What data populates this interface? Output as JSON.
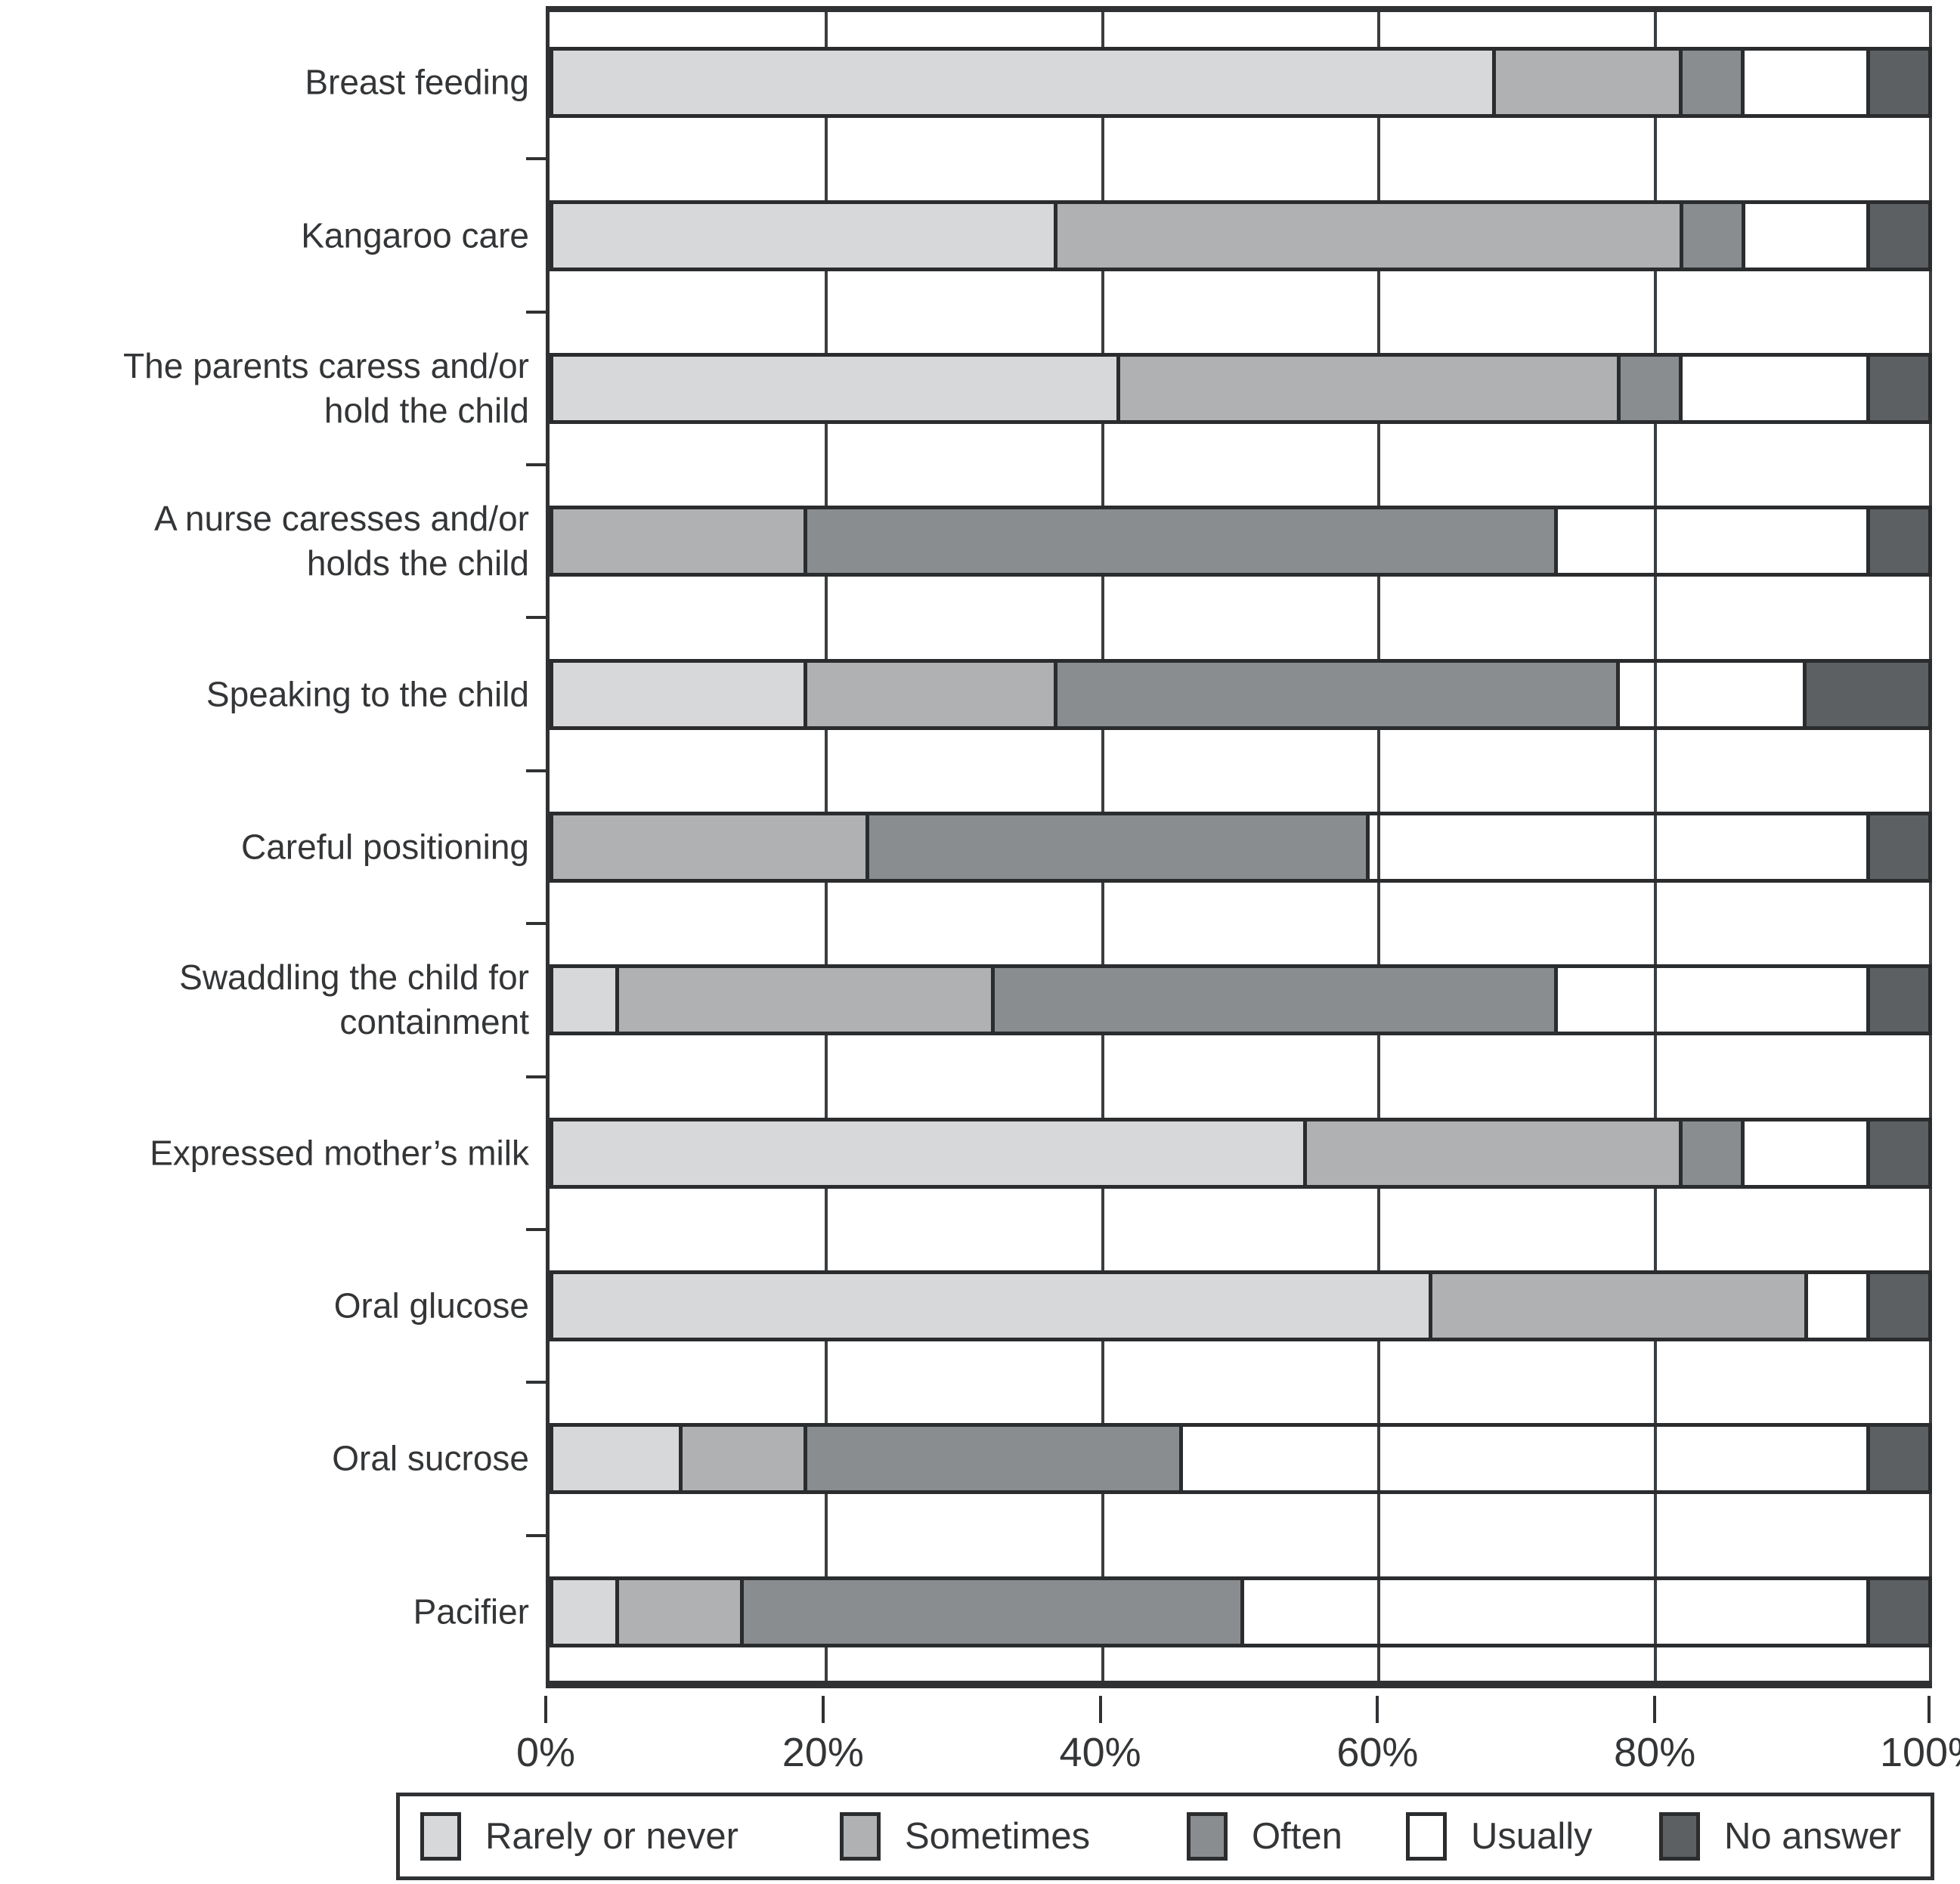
{
  "chart_data": {
    "type": "bar",
    "orientation": "horizontal",
    "stacked": true,
    "title": "",
    "xlabel": "",
    "ylabel": "",
    "x_axis": {
      "range": [
        0,
        100
      ],
      "tick_labels": [
        "0%",
        "20%",
        "40%",
        "60%",
        "80%",
        "100%"
      ],
      "grid": true
    },
    "legend_position": "bottom",
    "categories": [
      "Breast feeding",
      "Kangaroo care",
      "The parents caress and/or\nhold the child",
      "A nurse caresses and/or\nholds the child",
      "Speaking to the child",
      "Careful positioning",
      "Swaddling the child for\ncontainment",
      "Expressed mother’s milk",
      "Oral glucose",
      "Oral sucrose",
      "Pacifier"
    ],
    "series": [
      {
        "name": "Rarely or never",
        "color": "#d7d8da",
        "values": [
          68.2,
          36.4,
          40.9,
          0,
          18.2,
          0,
          4.5,
          54.5,
          63.6,
          9.1,
          4.5
        ]
      },
      {
        "name": "Sometimes",
        "color": "#afb1b3",
        "values": [
          13.6,
          45.5,
          36.4,
          18.2,
          18.2,
          22.7,
          27.3,
          27.3,
          27.3,
          9.1,
          9.1
        ]
      },
      {
        "name": "Often",
        "color": "#8a8d90",
        "values": [
          4.5,
          4.5,
          4.5,
          54.5,
          40.9,
          36.4,
          40.9,
          4.5,
          0,
          27.3,
          36.4
        ]
      },
      {
        "name": "Usually",
        "color": "#ffffff",
        "values": [
          9.1,
          9.1,
          13.6,
          22.7,
          13.6,
          36.4,
          22.7,
          9.1,
          4.5,
          50.0,
          45.5
        ]
      },
      {
        "name": "No answer",
        "color": "#5d6063",
        "values": [
          4.5,
          4.5,
          4.5,
          4.5,
          9.1,
          4.5,
          4.5,
          4.5,
          4.5,
          4.5,
          4.5
        ]
      }
    ]
  }
}
